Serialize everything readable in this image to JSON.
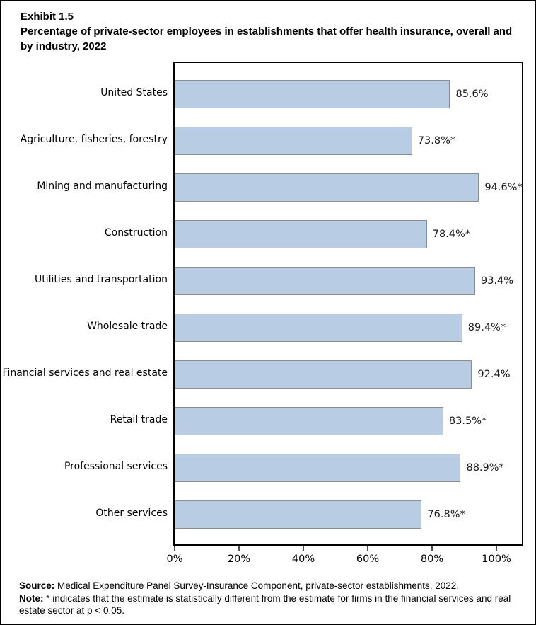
{
  "figure": {
    "exhibit_label": "Exhibit 1.5",
    "title": "Percentage of private-sector employees in establishments that offer health insurance, overall and by industry, 2022"
  },
  "chart_data": {
    "type": "bar",
    "orientation": "horizontal",
    "title": "Percentage of private-sector employees in establishments that offer health insurance, overall and by industry, 2022",
    "categories": [
      "United States",
      "Agriculture, fisheries, forestry",
      "Mining and manufacturing",
      "Construction",
      "Utilities and transportation",
      "Wholesale trade",
      "Financial services and real estate",
      "Retail trade",
      "Professional services",
      "Other services"
    ],
    "values": [
      85.6,
      73.8,
      94.6,
      78.4,
      93.4,
      89.4,
      92.4,
      83.5,
      88.9,
      76.8
    ],
    "value_labels": [
      "85.6%",
      "73.8%*",
      "94.6%*",
      "78.4%*",
      "93.4%",
      "89.4%*",
      "92.4%",
      "83.5%*",
      "88.9%*",
      "76.8%*"
    ],
    "xlabel": "",
    "ylabel": "",
    "x_ticks": [
      "0%",
      "20%",
      "40%",
      "60%",
      "80%",
      "100%"
    ],
    "x_tick_values": [
      0,
      20,
      40,
      60,
      80,
      100
    ],
    "xlim": [
      0,
      108.8
    ],
    "grid": false,
    "legend": null,
    "bar_fill": "#B8CDE4",
    "bar_border": "#8C8C8C"
  },
  "footer": {
    "source_label": "Source:",
    "source_text": " Medical Expenditure Panel Survey-Insurance Component, private-sector establishments, 2022.",
    "note_label": "Note:",
    "note_text": "  * indicates that the estimate is statistically different from the estimate for firms in the financial services and real estate sector at p < 0.05."
  }
}
